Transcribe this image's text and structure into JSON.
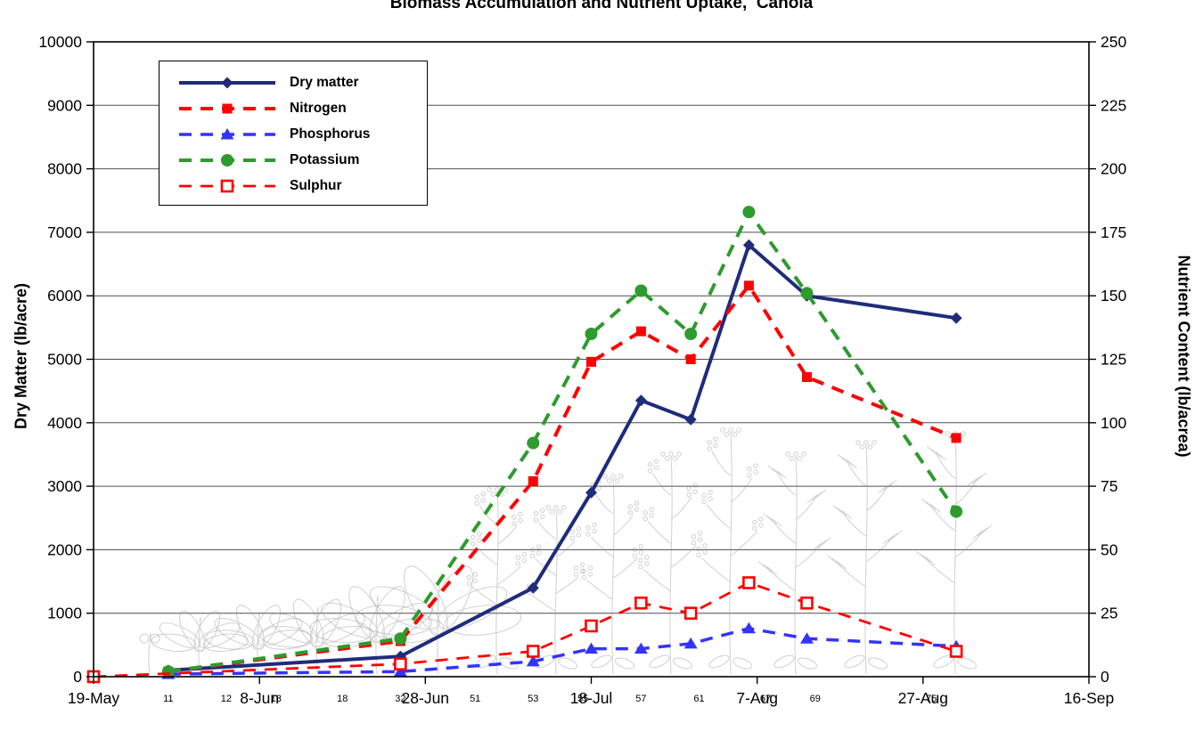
{
  "chart_data": {
    "type": "line",
    "title": "Biomass Accumulation and Nutrient Uptake,  Canola",
    "grid": "horizontal",
    "legend_position": "top-left-inside",
    "left_axis": {
      "label": "Dry Matter (lb/acre)",
      "min": 0,
      "max": 10000,
      "step": 1000,
      "tick_labels": [
        "0",
        "1000",
        "2000",
        "3000",
        "4000",
        "5000",
        "6000",
        "7000",
        "8000",
        "9000",
        "10000"
      ]
    },
    "right_axis": {
      "label": "Nutrient Content (lb/acrea)",
      "min": 0,
      "max": 250,
      "step": 25,
      "tick_labels": [
        "0",
        "25",
        "50",
        "75",
        "100",
        "125",
        "150",
        "175",
        "200",
        "225",
        "250"
      ]
    },
    "x_axis": {
      "min_day": 0,
      "max_day": 120,
      "tick_days": [
        0,
        20,
        40,
        60,
        80,
        100,
        120
      ],
      "tick_labels": [
        "19-May",
        "8-Jun",
        "28-Jun",
        "18-Jul",
        "7-Aug",
        "27-Aug",
        "16-Sep"
      ]
    },
    "growth_stage_labels": [
      {
        "label": "11",
        "day": 9
      },
      {
        "label": "12",
        "day": 16
      },
      {
        "label": "13",
        "day": 22
      },
      {
        "label": "18",
        "day": 30
      },
      {
        "label": "32",
        "day": 37
      },
      {
        "label": "51",
        "day": 46
      },
      {
        "label": "53",
        "day": 53
      },
      {
        "label": "55",
        "day": 59
      },
      {
        "label": "57",
        "day": 66
      },
      {
        "label": "61",
        "day": 73
      },
      {
        "label": "67",
        "day": 81
      },
      {
        "label": "69",
        "day": 87
      },
      {
        "label": "75",
        "day": 101
      }
    ],
    "series": [
      {
        "name": "Dry matter",
        "axis": "left",
        "color": "#1F2C7B",
        "marker": "diamond",
        "line": "solid",
        "days": [
          9,
          37,
          53,
          60,
          66,
          72,
          79,
          86,
          104
        ],
        "values": [
          100,
          320,
          1400,
          2900,
          4350,
          4050,
          6800,
          6000,
          5650
        ]
      },
      {
        "name": "Nitrogen",
        "axis": "right",
        "color": "#FF0000",
        "marker": "square",
        "line": "dashed",
        "days": [
          9,
          37,
          53,
          60,
          66,
          72,
          79,
          86,
          104
        ],
        "values": [
          2,
          14,
          77,
          124,
          136,
          125,
          154,
          118,
          94
        ]
      },
      {
        "name": "Phosphorus",
        "axis": "right",
        "color": "#3333FF",
        "marker": "triangle",
        "line": "dashed",
        "days": [
          9,
          37,
          53,
          60,
          66,
          72,
          79,
          86,
          104
        ],
        "values": [
          1,
          2,
          6,
          11,
          11,
          13,
          19,
          15,
          12
        ]
      },
      {
        "name": "Potassium",
        "axis": "right",
        "color": "#2E9B2E",
        "marker": "circle",
        "line": "dashed",
        "days": [
          9,
          37,
          53,
          60,
          66,
          72,
          79,
          86,
          104
        ],
        "values": [
          2,
          15,
          92,
          135,
          152,
          135,
          183,
          151,
          65
        ]
      },
      {
        "name": "Sulphur",
        "axis": "right",
        "color": "#FF0000",
        "marker": "open-square",
        "line": "dashed",
        "days": [
          0,
          37,
          53,
          60,
          66,
          72,
          79,
          86,
          104
        ],
        "values": [
          0,
          5,
          10,
          20,
          29,
          25,
          37,
          29,
          10
        ]
      }
    ]
  }
}
